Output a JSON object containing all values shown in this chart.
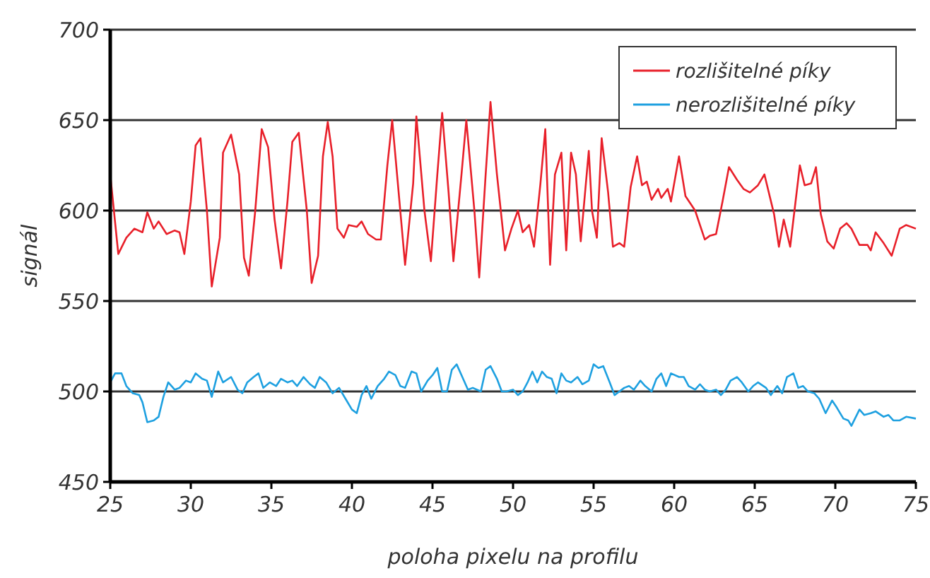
{
  "chart_data": {
    "type": "line",
    "xlabel": "poloha pixelu na profilu",
    "ylabel": "signál",
    "xlim": [
      25,
      75
    ],
    "xticks": [
      25,
      30,
      35,
      40,
      45,
      50,
      55,
      60,
      65,
      70,
      75
    ],
    "ylim": [
      450,
      700
    ],
    "yticks": [
      450,
      500,
      550,
      600,
      650,
      700
    ],
    "grid": "y",
    "legend": "top right",
    "marker": "none",
    "line_style": "solid",
    "series": [
      {
        "name": "rozlišitelné píky",
        "color": "#e8202a",
        "x": [
          25,
          25.5,
          26,
          26.5,
          27,
          27.3,
          27.7,
          28,
          28.5,
          29,
          29.3,
          29.6,
          30,
          30.3,
          30.6,
          31,
          31.3,
          31.8,
          32,
          32.5,
          33,
          33.3,
          33.6,
          34,
          34.4,
          34.8,
          35.2,
          35.6,
          36,
          36.3,
          36.7,
          37.2,
          37.5,
          37.9,
          38.2,
          38.5,
          38.8,
          39.1,
          39.5,
          39.8,
          40.3,
          40.6,
          41,
          41.5,
          41.8,
          42.2,
          42.5,
          43,
          43.3,
          43.8,
          44,
          44.5,
          44.9,
          45.3,
          45.6,
          46,
          46.3,
          46.8,
          47.1,
          47.6,
          47.9,
          48.3,
          48.6,
          49,
          49.5,
          49.9,
          50.3,
          50.6,
          51,
          51.3,
          51.7,
          52,
          52.3,
          52.6,
          53,
          53.3,
          53.6,
          53.9,
          54.2,
          54.7,
          54.9,
          55.2,
          55.5,
          55.9,
          56.2,
          56.6,
          56.9,
          57.3,
          57.7,
          58,
          58.3,
          58.6,
          59,
          59.2,
          59.6,
          59.8,
          60.3,
          60.7,
          61.3,
          61.9,
          62.2,
          62.6,
          63,
          63.4,
          63.9,
          64.3,
          64.7,
          65.2,
          65.6,
          66.2,
          66.5,
          66.8,
          67.2,
          67.8,
          68.1,
          68.5,
          68.8,
          69.1,
          69.5,
          69.9,
          70.3,
          70.7,
          71,
          71.5,
          72,
          72.2,
          72.5,
          73,
          73.5,
          74,
          74.4,
          75
        ],
        "values": [
          620,
          576,
          585,
          590,
          588,
          599,
          590,
          594,
          587,
          589,
          588,
          576,
          605,
          636,
          640,
          600,
          558,
          585,
          632,
          642,
          620,
          574,
          564,
          600,
          645,
          635,
          595,
          568,
          605,
          638,
          643,
          600,
          560,
          575,
          630,
          649,
          630,
          590,
          585,
          592,
          591,
          594,
          587,
          584,
          584,
          625,
          650,
          600,
          570,
          615,
          652,
          600,
          572,
          620,
          654,
          610,
          572,
          620,
          650,
          600,
          563,
          620,
          660,
          620,
          578,
          590,
          600,
          588,
          592,
          580,
          615,
          645,
          570,
          620,
          632,
          578,
          632,
          620,
          583,
          633,
          600,
          585,
          640,
          610,
          580,
          582,
          580,
          613,
          630,
          614,
          616,
          606,
          612,
          607,
          612,
          605,
          630,
          608,
          600,
          584,
          586,
          587,
          605,
          624,
          617,
          612,
          610,
          614,
          620,
          598,
          580,
          595,
          580,
          625,
          614,
          615,
          624,
          598,
          583,
          579,
          590,
          593,
          590,
          581,
          581,
          578,
          588,
          582,
          575,
          590,
          592,
          590
        ]
      },
      {
        "name": "nerozlišitelné píky",
        "color": "#1ea0e0",
        "x": [
          25,
          25.3,
          25.7,
          26,
          26.4,
          26.8,
          27,
          27.3,
          27.7,
          28,
          28.3,
          28.6,
          29,
          29.3,
          29.7,
          30,
          30.3,
          30.7,
          31,
          31.3,
          31.7,
          32,
          32.5,
          32.9,
          33.2,
          33.5,
          33.9,
          34.2,
          34.5,
          34.9,
          35.3,
          35.6,
          36,
          36.3,
          36.6,
          37,
          37.4,
          37.7,
          38,
          38.4,
          38.8,
          39.2,
          39.6,
          40,
          40.3,
          40.6,
          40.9,
          41.2,
          41.6,
          42,
          42.3,
          42.7,
          43,
          43.3,
          43.7,
          44,
          44.3,
          44.7,
          45,
          45.3,
          45.6,
          45.9,
          46.2,
          46.5,
          46.9,
          47.2,
          47.5,
          48,
          48.3,
          48.6,
          49,
          49.3,
          49.6,
          50,
          50.3,
          50.6,
          50.9,
          51.2,
          51.5,
          51.8,
          52.1,
          52.4,
          52.7,
          53,
          53.3,
          53.6,
          54,
          54.3,
          54.7,
          55,
          55.3,
          55.6,
          56,
          56.3,
          56.6,
          56.9,
          57.2,
          57.5,
          57.9,
          58.2,
          58.6,
          58.9,
          59.2,
          59.5,
          59.8,
          60.3,
          60.6,
          60.9,
          61.3,
          61.6,
          61.9,
          62.2,
          62.6,
          62.9,
          63.2,
          63.5,
          63.9,
          64.2,
          64.6,
          64.9,
          65.2,
          65.7,
          66,
          66.4,
          66.7,
          67,
          67.4,
          67.7,
          68,
          68.3,
          68.7,
          69,
          69.4,
          69.8,
          70.1,
          70.5,
          70.8,
          71,
          71.5,
          71.8,
          72.2,
          72.5,
          73,
          73.3,
          73.6,
          74,
          74.4,
          75
        ],
        "values": [
          505,
          510,
          510,
          503,
          499,
          498,
          494,
          483,
          484,
          486,
          497,
          505,
          501,
          502,
          506,
          505,
          510,
          507,
          506,
          497,
          511,
          505,
          508,
          501,
          499,
          505,
          508,
          510,
          502,
          505,
          503,
          507,
          505,
          506,
          503,
          508,
          504,
          502,
          508,
          505,
          499,
          502,
          496,
          490,
          488,
          498,
          503,
          496,
          503,
          507,
          511,
          509,
          503,
          502,
          511,
          510,
          500,
          506,
          509,
          513,
          500,
          500,
          512,
          515,
          507,
          501,
          502,
          500,
          512,
          514,
          507,
          500,
          500,
          501,
          498,
          500,
          505,
          511,
          505,
          511,
          508,
          507,
          499,
          510,
          506,
          505,
          508,
          504,
          506,
          515,
          513,
          514,
          505,
          498,
          500,
          502,
          503,
          501,
          506,
          503,
          500,
          507,
          510,
          503,
          510,
          508,
          508,
          503,
          501,
          504,
          501,
          500,
          501,
          498,
          501,
          506,
          508,
          505,
          500,
          503,
          505,
          502,
          498,
          503,
          499,
          508,
          510,
          502,
          503,
          500,
          499,
          496,
          488,
          495,
          491,
          485,
          484,
          481,
          490,
          487,
          488,
          489,
          486,
          487,
          484,
          484,
          486,
          485
        ]
      }
    ]
  }
}
